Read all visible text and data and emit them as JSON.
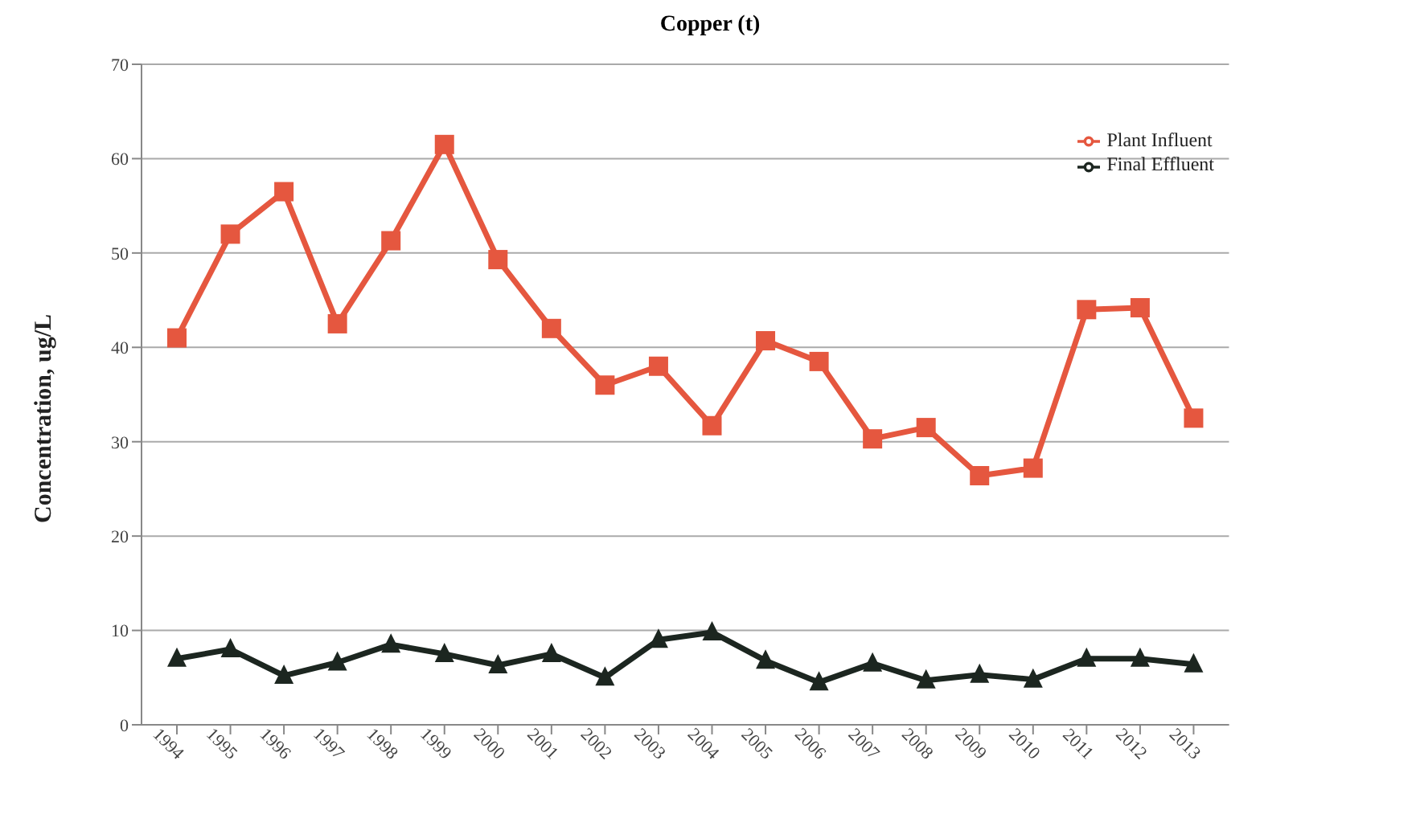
{
  "chart_data": {
    "type": "line",
    "title": "Copper (t)",
    "ylabel": "Concentration, ug/L",
    "categories": [
      "1994",
      "1995",
      "1996",
      "1997",
      "1998",
      "1999",
      "2000",
      "2001",
      "2002",
      "2003",
      "2004",
      "2005",
      "2006",
      "2007",
      "2008",
      "2009",
      "2010",
      "2011",
      "2012",
      "2013"
    ],
    "series": [
      {
        "name": "Plant Influent",
        "color": "#e5573f",
        "marker": "square",
        "values": [
          41,
          52,
          56.5,
          42.5,
          51.3,
          61.5,
          49.3,
          42,
          36,
          38,
          31.7,
          40.7,
          38.5,
          30.3,
          31.5,
          26.4,
          27.2,
          44,
          44.2,
          32.5
        ]
      },
      {
        "name": "Final Effluent",
        "color": "#1c2620",
        "marker": "triangle",
        "values": [
          7,
          8,
          5.2,
          6.6,
          8.5,
          7.5,
          6.3,
          7.5,
          5,
          9,
          9.8,
          6.8,
          4.5,
          6.5,
          4.7,
          5.3,
          4.8,
          7,
          7,
          6.4
        ]
      }
    ],
    "ylim": [
      0,
      70
    ],
    "yticks": [
      0,
      10,
      20,
      30,
      40,
      50,
      60,
      70
    ],
    "grid": "y",
    "legend": "top right",
    "line_style": "solid"
  }
}
